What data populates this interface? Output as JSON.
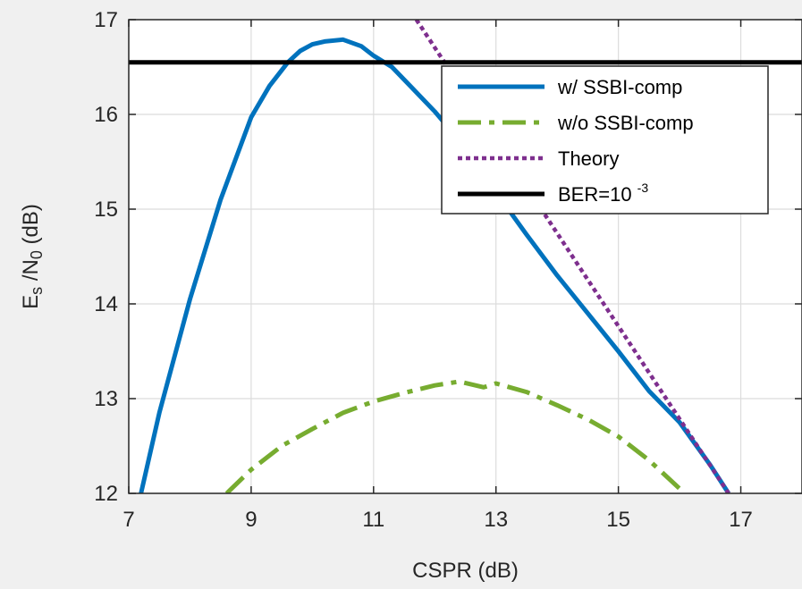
{
  "chart_data": {
    "type": "line",
    "title": "",
    "xlabel": "CSPR (dB)",
    "ylabel": {
      "main": "E",
      "sub1": "s",
      "mid": " /N",
      "sub2": "0",
      "tail": " (dB)"
    },
    "xlim": [
      7,
      18
    ],
    "ylim": [
      12,
      17
    ],
    "xticks": [
      7,
      9,
      11,
      13,
      15,
      17
    ],
    "yticks": [
      12,
      13,
      14,
      15,
      16,
      17
    ],
    "grid": true,
    "legend_position": "top-right",
    "series": [
      {
        "name": "w/ SSBI-comp",
        "color": "#0072BD",
        "style": "solid",
        "x": [
          7.2,
          7.5,
          8.0,
          8.5,
          9.0,
          9.3,
          9.6,
          9.8,
          10.0,
          10.2,
          10.5,
          10.8,
          11.0,
          11.3,
          11.6,
          12.0,
          12.5,
          13.0,
          13.5,
          14.0,
          14.5,
          15.0,
          15.5,
          16.0,
          16.5,
          16.8
        ],
        "y": [
          12.0,
          12.85,
          14.05,
          15.1,
          15.97,
          16.3,
          16.55,
          16.67,
          16.74,
          16.77,
          16.79,
          16.72,
          16.62,
          16.5,
          16.3,
          16.03,
          15.65,
          15.18,
          14.73,
          14.3,
          13.9,
          13.5,
          13.08,
          12.75,
          12.3,
          12.0
        ]
      },
      {
        "name": "w/o SSBI-comp",
        "color": "#77AC30",
        "style": "dashdot",
        "x": [
          8.6,
          9.0,
          9.5,
          10.0,
          10.5,
          11.0,
          11.5,
          12.0,
          12.4,
          12.8,
          13.0,
          13.5,
          14.0,
          14.5,
          15.0,
          15.5,
          16.0,
          16.05
        ],
        "y": [
          12.0,
          12.25,
          12.5,
          12.68,
          12.85,
          12.97,
          13.06,
          13.14,
          13.18,
          13.12,
          13.16,
          13.07,
          12.93,
          12.78,
          12.6,
          12.35,
          12.05,
          12.0
        ]
      },
      {
        "name": "Theory",
        "color": "#7E2F8E",
        "style": "dotted",
        "x": [
          11.7,
          16.8
        ],
        "y": [
          17.0,
          12.0
        ]
      },
      {
        "name": "BER=10",
        "name_sup": "-3",
        "color": "#000000",
        "style": "solid",
        "x": [
          7,
          18
        ],
        "y": [
          16.55,
          16.55
        ]
      }
    ]
  }
}
